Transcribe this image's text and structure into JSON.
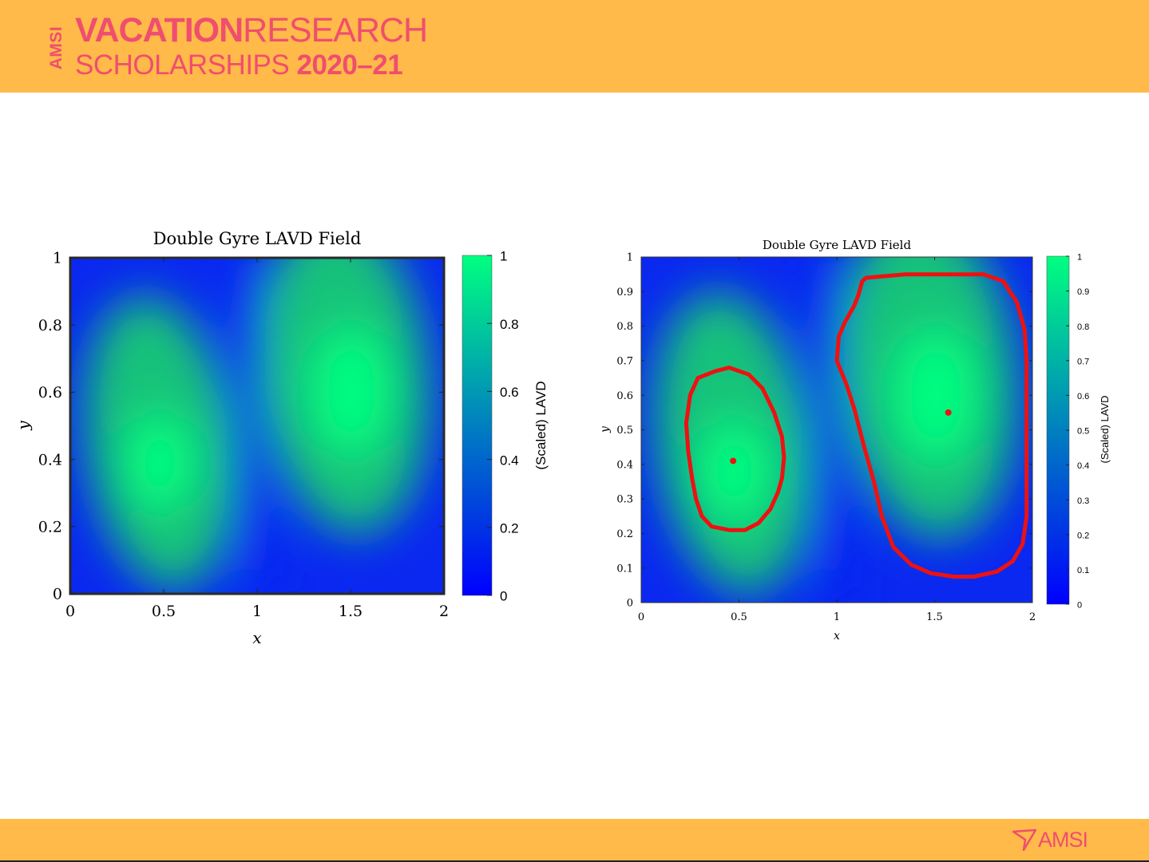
{
  "header": {
    "brand_vertical": "AMSI",
    "line1_bold": "VACATION",
    "line1_regular": "RESEARCH",
    "line2_regular": "SCHOLARSHIPS",
    "line2_bold": "2020–21",
    "background": "#ffba4a",
    "brand_color": "#f04e6e"
  },
  "footer": {
    "logo_text": "AMSI",
    "logo_icon": "amsi-arrow-icon"
  },
  "chart_data": [
    {
      "type": "heatmap",
      "title": "Double Gyre LAVD Field",
      "xlabel": "x",
      "ylabel": "y",
      "xlim": [
        0,
        2
      ],
      "ylim": [
        0,
        1
      ],
      "xticks": [
        "0",
        "0.5",
        "1",
        "1.5",
        "2"
      ],
      "yticks": [
        "0",
        "0.2",
        "0.4",
        "0.6",
        "0.8",
        "1"
      ],
      "colorbar": {
        "label": "(Scaled) LAVD",
        "range": [
          0,
          1
        ],
        "ticks": [
          "0",
          "0.2",
          "0.4",
          "0.6",
          "0.8",
          "1"
        ],
        "colormap": [
          "#0000ff",
          "#00ff80"
        ]
      },
      "peaks": [
        {
          "x": 0.45,
          "y": 0.4,
          "value": 1.0
        },
        {
          "x": 1.55,
          "y": 0.6,
          "value": 1.0
        }
      ]
    },
    {
      "type": "heatmap",
      "title": "Double Gyre LAVD Field",
      "xlabel": "x",
      "ylabel": "y",
      "xlim": [
        0,
        2
      ],
      "ylim": [
        0,
        1
      ],
      "xticks": [
        "0",
        "0.5",
        "1",
        "1.5",
        "2"
      ],
      "yticks": [
        "0",
        "0.1",
        "0.2",
        "0.3",
        "0.4",
        "0.5",
        "0.6",
        "0.7",
        "0.8",
        "0.9",
        "1"
      ],
      "colorbar": {
        "label": "(Scaled) LAVD",
        "range": [
          0,
          1
        ],
        "ticks": [
          "0",
          "0.1",
          "0.2",
          "0.3",
          "0.4",
          "0.5",
          "0.6",
          "0.7",
          "0.8",
          "0.9",
          "1"
        ],
        "colormap": [
          "#0000ff",
          "#00ff80"
        ]
      },
      "peaks": [
        {
          "x": 0.45,
          "y": 0.4,
          "value": 1.0
        },
        {
          "x": 1.55,
          "y": 0.6,
          "value": 1.0
        }
      ],
      "vortex_centers": [
        {
          "x": 0.47,
          "y": 0.41
        },
        {
          "x": 1.57,
          "y": 0.55
        }
      ],
      "vortex_boundaries": [
        [
          [
            0.45,
            0.68
          ],
          [
            0.38,
            0.67
          ],
          [
            0.29,
            0.65
          ],
          [
            0.25,
            0.6
          ],
          [
            0.23,
            0.52
          ],
          [
            0.24,
            0.44
          ],
          [
            0.26,
            0.36
          ],
          [
            0.28,
            0.3
          ],
          [
            0.31,
            0.25
          ],
          [
            0.36,
            0.22
          ],
          [
            0.45,
            0.21
          ],
          [
            0.53,
            0.21
          ],
          [
            0.6,
            0.23
          ],
          [
            0.66,
            0.27
          ],
          [
            0.7,
            0.32
          ],
          [
            0.72,
            0.36
          ],
          [
            0.73,
            0.42
          ],
          [
            0.72,
            0.48
          ],
          [
            0.68,
            0.55
          ],
          [
            0.62,
            0.62
          ],
          [
            0.55,
            0.66
          ],
          [
            0.45,
            0.68
          ]
        ],
        [
          [
            1.15,
            0.94
          ],
          [
            1.35,
            0.95
          ],
          [
            1.55,
            0.95
          ],
          [
            1.75,
            0.95
          ],
          [
            1.85,
            0.93
          ],
          [
            1.92,
            0.87
          ],
          [
            1.96,
            0.79
          ],
          [
            1.97,
            0.7
          ],
          [
            1.97,
            0.55
          ],
          [
            1.97,
            0.4
          ],
          [
            1.97,
            0.25
          ],
          [
            1.95,
            0.17
          ],
          [
            1.9,
            0.12
          ],
          [
            1.82,
            0.09
          ],
          [
            1.7,
            0.075
          ],
          [
            1.6,
            0.075
          ],
          [
            1.48,
            0.085
          ],
          [
            1.38,
            0.11
          ],
          [
            1.29,
            0.16
          ],
          [
            1.23,
            0.25
          ],
          [
            1.19,
            0.35
          ],
          [
            1.14,
            0.45
          ],
          [
            1.09,
            0.56
          ],
          [
            1.05,
            0.63
          ],
          [
            1.0,
            0.7
          ],
          [
            1.01,
            0.77
          ],
          [
            1.04,
            0.81
          ],
          [
            1.09,
            0.86
          ],
          [
            1.11,
            0.89
          ],
          [
            1.13,
            0.93
          ],
          [
            1.15,
            0.94
          ]
        ]
      ],
      "marker_color": "#ee1111"
    }
  ]
}
